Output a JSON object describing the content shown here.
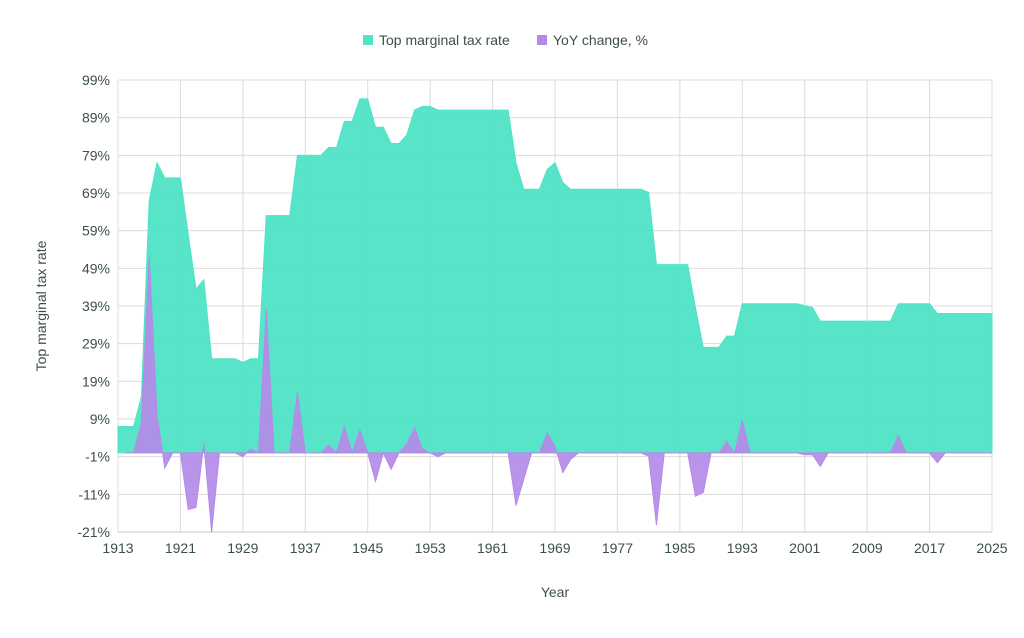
{
  "chart_data": {
    "type": "area",
    "title": "",
    "xlabel": "Year",
    "ylabel": "Top marginal tax rate",
    "xlim": [
      1913,
      2025
    ],
    "ylim": [
      -21,
      99
    ],
    "x_ticks": [
      1913,
      1921,
      1929,
      1937,
      1945,
      1953,
      1961,
      1969,
      1977,
      1985,
      1993,
      2001,
      2009,
      2017,
      2025
    ],
    "y_ticks": [
      -21,
      -11,
      -1,
      9,
      19,
      29,
      39,
      49,
      59,
      69,
      79,
      89,
      99
    ],
    "y_tick_suffix": "%",
    "grid": true,
    "legend_position": "top",
    "x": [
      1913,
      1914,
      1915,
      1916,
      1917,
      1918,
      1919,
      1920,
      1921,
      1922,
      1923,
      1924,
      1925,
      1926,
      1927,
      1928,
      1929,
      1930,
      1931,
      1932,
      1933,
      1934,
      1935,
      1936,
      1937,
      1938,
      1939,
      1940,
      1941,
      1942,
      1943,
      1944,
      1945,
      1946,
      1947,
      1948,
      1949,
      1950,
      1951,
      1952,
      1953,
      1954,
      1955,
      1956,
      1957,
      1958,
      1959,
      1960,
      1961,
      1962,
      1963,
      1964,
      1965,
      1966,
      1967,
      1968,
      1969,
      1970,
      1971,
      1972,
      1973,
      1974,
      1975,
      1976,
      1977,
      1978,
      1979,
      1980,
      1981,
      1982,
      1983,
      1984,
      1985,
      1986,
      1987,
      1988,
      1989,
      1990,
      1991,
      1992,
      1993,
      1994,
      1995,
      1996,
      1997,
      1998,
      1999,
      2000,
      2001,
      2002,
      2003,
      2004,
      2005,
      2006,
      2007,
      2008,
      2009,
      2010,
      2011,
      2012,
      2013,
      2014,
      2015,
      2016,
      2017,
      2018,
      2019,
      2020,
      2021,
      2022,
      2023,
      2024,
      2025
    ],
    "series": [
      {
        "name": "Top marginal tax rate",
        "color": "#52e3c6",
        "values": [
          7,
          7,
          7,
          15,
          67,
          77,
          73,
          73,
          73,
          58,
          43.5,
          46,
          25,
          25,
          25,
          25,
          24,
          25,
          25,
          63,
          63,
          63,
          63,
          79,
          79,
          79,
          79,
          81.1,
          81,
          88,
          88,
          94,
          94,
          86.45,
          86.45,
          82.13,
          82.13,
          84.36,
          91,
          92,
          92,
          91,
          91,
          91,
          91,
          91,
          91,
          91,
          91,
          91,
          91,
          77,
          70,
          70,
          70,
          75.25,
          77,
          71.75,
          70,
          70,
          70,
          70,
          70,
          70,
          70,
          70,
          70,
          70,
          69.13,
          50,
          50,
          50,
          50,
          50,
          38.5,
          28,
          28,
          28,
          31,
          31,
          39.6,
          39.6,
          39.6,
          39.6,
          39.6,
          39.6,
          39.6,
          39.6,
          39.1,
          38.6,
          35,
          35,
          35,
          35,
          35,
          35,
          35,
          35,
          35,
          35,
          39.6,
          39.6,
          39.6,
          39.6,
          39.6,
          37,
          37,
          37,
          37,
          37,
          37,
          37,
          37
        ]
      },
      {
        "name": "YoY change, %",
        "color": "#b48ae8",
        "values": [
          null,
          0,
          0,
          8,
          52,
          10,
          -4,
          0,
          0,
          -15,
          -14.5,
          2.5,
          -21,
          0,
          0,
          0,
          -1,
          1,
          0,
          38,
          0,
          0,
          0,
          16,
          0,
          0,
          0,
          2.1,
          -0.1,
          7,
          0,
          6,
          0,
          -7.55,
          0,
          -4.32,
          0,
          2.23,
          6.64,
          1,
          0,
          -1,
          0,
          0,
          0,
          0,
          0,
          0,
          0,
          0,
          0,
          -14,
          -7,
          0,
          0,
          5.25,
          1.75,
          -5.25,
          -1.75,
          0,
          0,
          0,
          0,
          0,
          0,
          0,
          0,
          0,
          -0.87,
          -19.13,
          0,
          0,
          0,
          0,
          -11.5,
          -10.5,
          0,
          0,
          3,
          0,
          8.6,
          0,
          0,
          0,
          0,
          0,
          0,
          0,
          -0.5,
          -0.5,
          -3.6,
          0,
          0,
          0,
          0,
          0,
          0,
          0,
          0,
          0,
          4.6,
          0,
          0,
          0,
          0,
          -2.6,
          0,
          0,
          0,
          0,
          0,
          0,
          0
        ]
      }
    ]
  }
}
